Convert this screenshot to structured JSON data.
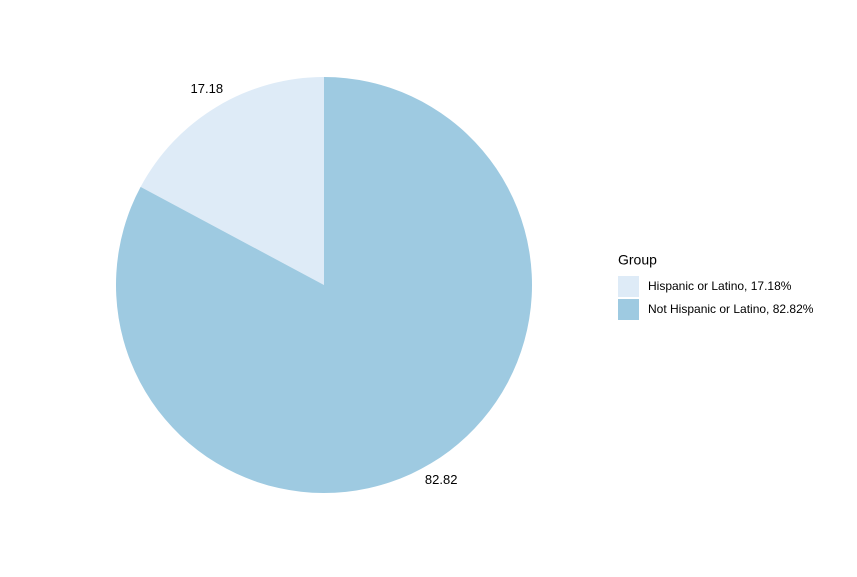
{
  "chart_data": {
    "type": "pie",
    "categories": [
      "Hispanic or Latino",
      "Not Hispanic or Latino"
    ],
    "values": [
      17.18,
      82.82
    ],
    "colors": [
      "#deebf7",
      "#9ecae1"
    ],
    "legend_title": "Group",
    "legend_labels": [
      "Hispanic or Latino, 17.18%",
      "Not Hispanic or Latino, 82.82%"
    ],
    "legend_position": "right"
  }
}
